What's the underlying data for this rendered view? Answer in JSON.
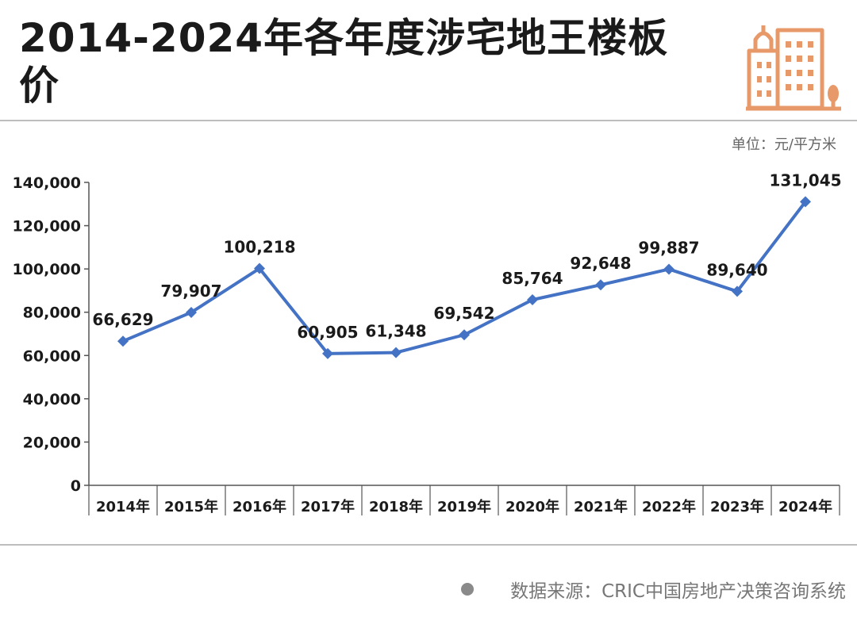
{
  "title": "2014-2024年各年度涉宅地王楼板价",
  "unit": "单位：元/平方米",
  "source": "数据来源：CRIC中国房地产决策咨询系统",
  "logo_icon": "building-icon",
  "colors": {
    "line": "#4472c4",
    "logo": "#e8996a",
    "text": "#1a1a1a"
  },
  "chart_data": {
    "type": "line",
    "categories": [
      "2014年",
      "2015年",
      "2016年",
      "2017年",
      "2018年",
      "2019年",
      "2020年",
      "2021年",
      "2022年",
      "2023年",
      "2024年"
    ],
    "values": [
      66629,
      79907,
      100218,
      60905,
      61348,
      69542,
      85764,
      92648,
      99887,
      89640,
      131045
    ],
    "data_labels": [
      "66,629",
      "79,907",
      "100,218",
      "60,905",
      "61,348",
      "69,542",
      "85,764",
      "92,648",
      "99,887",
      "89,640",
      "131,045"
    ],
    "ylim": [
      0,
      140000
    ],
    "yticks": [
      0,
      20000,
      40000,
      60000,
      80000,
      100000,
      120000,
      140000
    ],
    "ytick_labels": [
      "0",
      "20,000",
      "40,000",
      "60,000",
      "80,000",
      "100,000",
      "120,000",
      "140,000"
    ],
    "grid": false,
    "legend": "none"
  }
}
